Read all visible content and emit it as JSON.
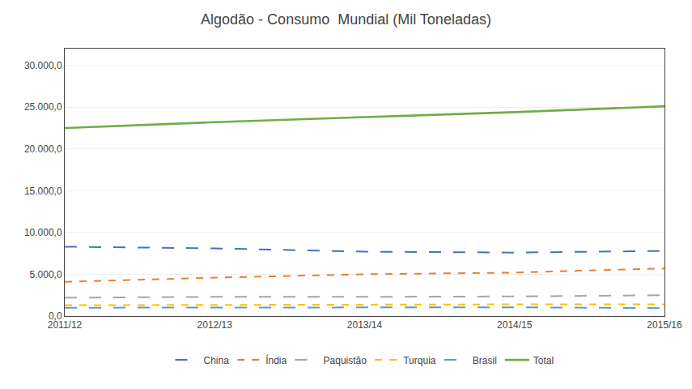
{
  "chart_data": {
    "type": "line",
    "title": "Algodão - Consumo  Mundial (Mil Toneladas)",
    "categories": [
      "2011/12",
      "2012/13",
      "2013/14",
      "2014/15",
      "2015/16"
    ],
    "series": [
      {
        "name": "China",
        "values": [
          8300,
          8100,
          7700,
          7600,
          7800
        ],
        "color": "#4472C4",
        "line_style": "longdash"
      },
      {
        "name": "Índia",
        "values": [
          4100,
          4600,
          5000,
          5200,
          5700
        ],
        "color": "#ED7D31",
        "line_style": "dash"
      },
      {
        "name": "Paquistão",
        "values": [
          2200,
          2300,
          2300,
          2350,
          2500
        ],
        "color": "#A5A5A5",
        "line_style": "longdash"
      },
      {
        "name": "Turquia",
        "values": [
          1300,
          1350,
          1400,
          1400,
          1400
        ],
        "color": "#FFC000",
        "line_style": "dash"
      },
      {
        "name": "Brasil",
        "values": [
          1000,
          1000,
          1050,
          1050,
          950
        ],
        "color": "#5B9BD5",
        "line_style": "longdash"
      },
      {
        "name": "Total",
        "values": [
          22500,
          23200,
          23800,
          24400,
          25100
        ],
        "color": "#70AD47",
        "line_style": "solid"
      }
    ],
    "ylim": [
      0,
      32000
    ],
    "yticks": [
      {
        "value": 0,
        "label": "0,0"
      },
      {
        "value": 5000,
        "label": "5.000,0"
      },
      {
        "value": 10000,
        "label": "10.000,0"
      },
      {
        "value": 15000,
        "label": "15.000,0"
      },
      {
        "value": 20000,
        "label": "20.000,0"
      },
      {
        "value": 25000,
        "label": "25.000,0"
      },
      {
        "value": 30000,
        "label": "30.000,0"
      }
    ],
    "grid": true,
    "legend": "bottom"
  }
}
